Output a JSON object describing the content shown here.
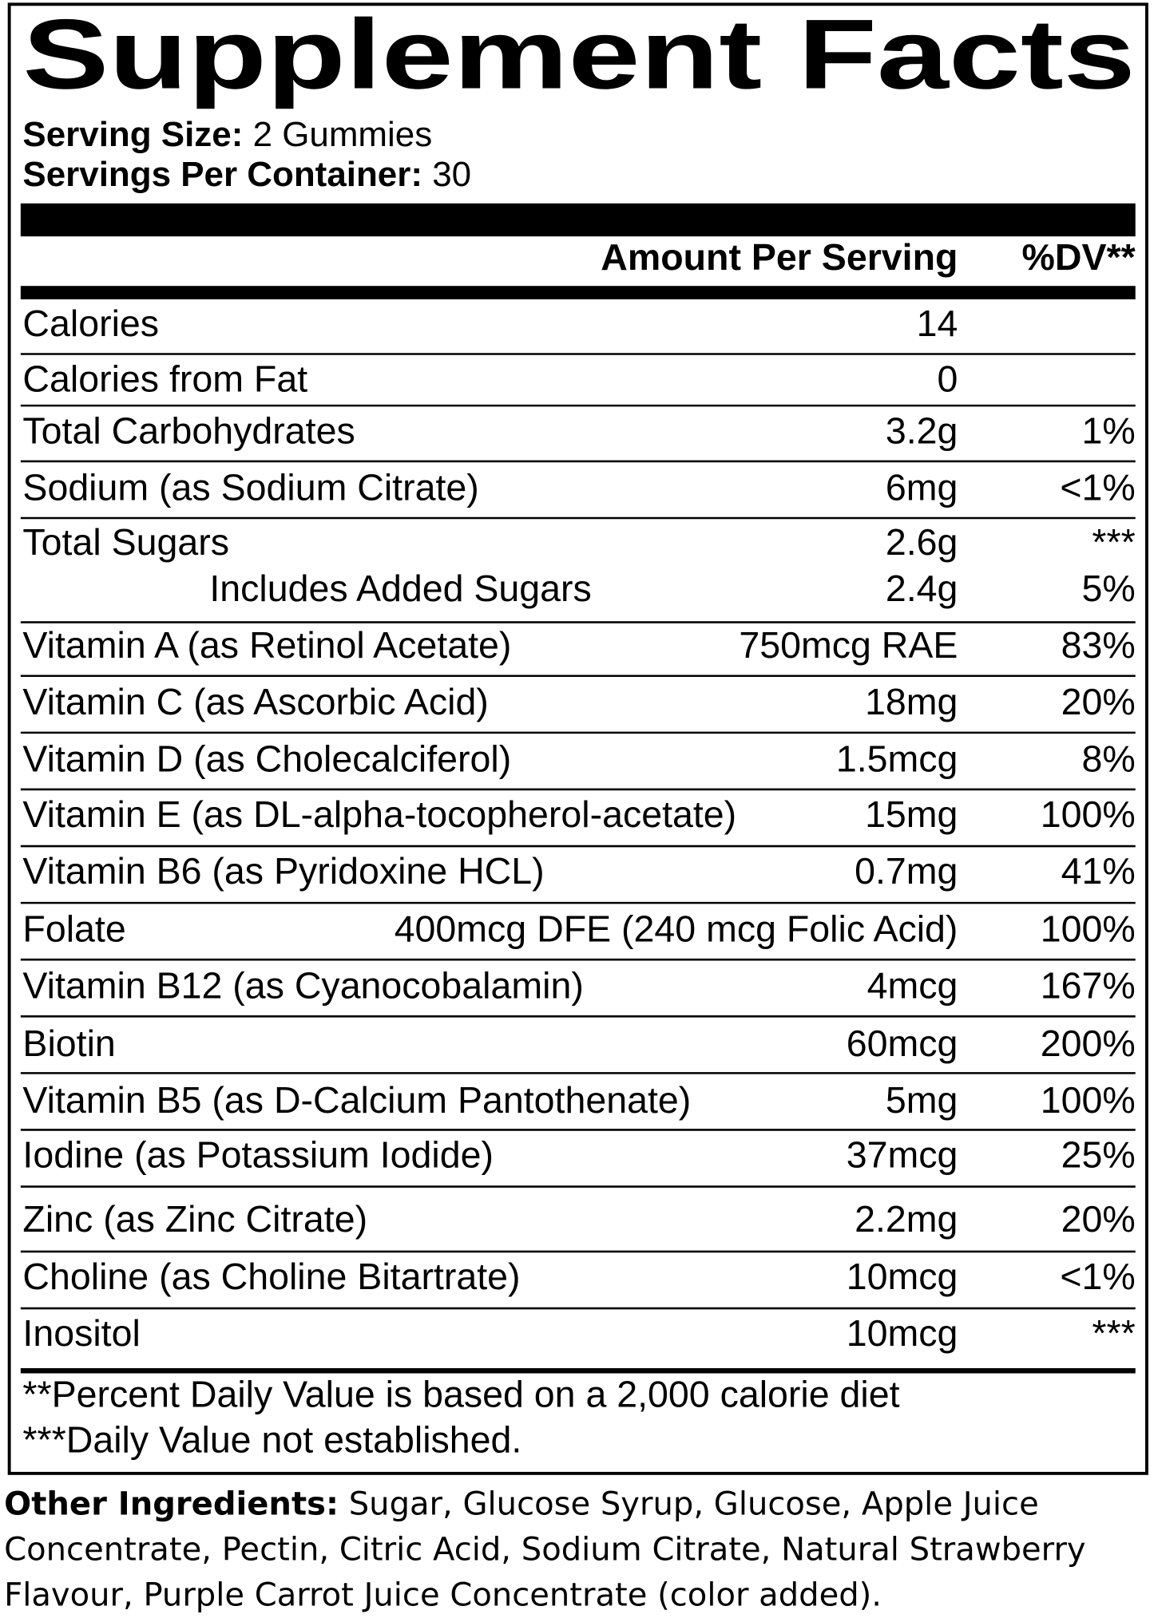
{
  "title": "Supplement Facts",
  "serving_size": {
    "label": "Serving Size:",
    "value": "2 Gummies"
  },
  "servings_per_container": {
    "label": "Servings Per Container:",
    "value": "30"
  },
  "header": {
    "amount": "Amount Per Serving",
    "dv": "%DV**"
  },
  "rows": [
    {
      "name": "Calories",
      "amount": "14"
    },
    {
      "name": "Calories from Fat",
      "amount": "0"
    },
    {
      "name": "Total Carbohydrates",
      "amount": "3.2g",
      "dv": "1%"
    },
    {
      "name": "Sodium (as Sodium Citrate)",
      "amount": "6mg",
      "dv": "<1%"
    },
    {
      "name": "Total Sugars",
      "amount": "2.6g",
      "dv": "***"
    },
    {
      "name": "Includes Added Sugars",
      "amount": "2.4g",
      "dv": "5%",
      "indent": true
    },
    {
      "name": "Vitamin A (as Retinol Acetate)",
      "amount": "750mcg RAE",
      "dv": "83%"
    },
    {
      "name": "Vitamin C (as Ascorbic Acid)",
      "amount": "18mg",
      "dv": "20%"
    },
    {
      "name": "Vitamin D (as Cholecalciferol)",
      "amount": "1.5mcg",
      "dv": "8%"
    },
    {
      "name": "Vitamin E (as DL-alpha-tocopherol-acetate)",
      "amount": "15mg",
      "dv": "100%"
    },
    {
      "name": "Vitamin B6 (as Pyridoxine HCL)",
      "amount": "0.7mg",
      "dv": "41%"
    },
    {
      "name": "Folate",
      "amount": "400mcg DFE (240 mcg Folic Acid)",
      "dv": "100%"
    },
    {
      "name": "Vitamin B12 (as Cyanocobalamin)",
      "amount": "4mcg",
      "dv": "167%"
    },
    {
      "name": "Biotin",
      "amount": "60mcg",
      "dv": "200%"
    },
    {
      "name": "Vitamin B5 (as D-Calcium Pantothenate)",
      "amount": "5mg",
      "dv": "100%"
    },
    {
      "name": "Iodine (as Potassium Iodide)",
      "amount": "37mcg",
      "dv": "25%"
    },
    {
      "name": "Zinc (as Zinc Citrate)",
      "amount": "2.2mg",
      "dv": "20%"
    },
    {
      "name": "Choline (as Choline Bitartrate)",
      "amount": "10mcg",
      "dv": "<1%"
    },
    {
      "name": "Inositol",
      "amount": "10mcg",
      "dv": "***"
    }
  ],
  "footnotes": [
    "**Percent Daily Value is based on a 2,000 calorie diet",
    "***Daily Value not established."
  ],
  "other_ingredients": {
    "label": "Other Ingredients:",
    "text": "Sugar, Glucose Syrup, Glucose, Apple Juice Concentrate, Pectin, Citric Acid, Sodium Citrate, Natural Strawberry Flavour, Purple Carrot Juice Concentrate (color added)."
  }
}
